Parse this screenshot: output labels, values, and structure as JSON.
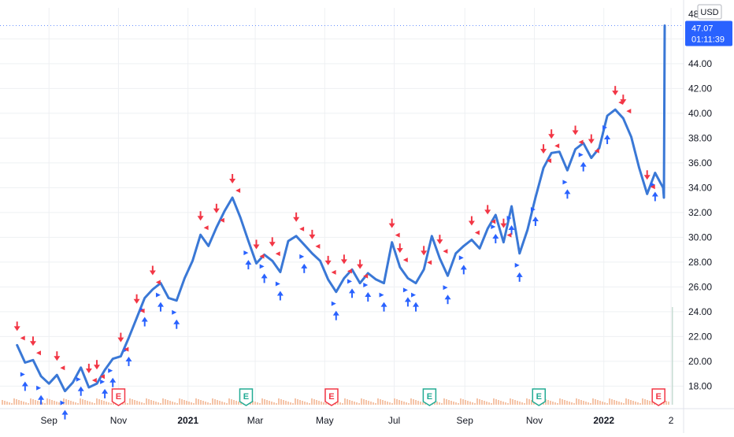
{
  "chart_data": {
    "type": "line",
    "currency": "USD",
    "last_price_label": "47.07",
    "countdown_label": "01:11:39",
    "ylim": [
      16.5,
      48.5
    ],
    "yticks": [
      18,
      20,
      22,
      24,
      26,
      28,
      30,
      32,
      34,
      36,
      38,
      40,
      42,
      44,
      46
    ],
    "ytick_labels": [
      "18.00",
      "20.00",
      "22.00",
      "24.00",
      "26.00",
      "28.00",
      "30.00",
      "32.00",
      "34.00",
      "36.00",
      "38.00",
      "40.00",
      "42.00",
      "44.00",
      "46.00"
    ],
    "y_top_partial_label": "48",
    "x_ticks": [
      {
        "date": "2020-09-01",
        "label": "Sep",
        "bold": false
      },
      {
        "date": "2020-11-01",
        "label": "Nov",
        "bold": false
      },
      {
        "date": "2021-01-01",
        "label": "2021",
        "bold": true
      },
      {
        "date": "2021-03-01",
        "label": "Mar",
        "bold": false
      },
      {
        "date": "2021-05-01",
        "label": "May",
        "bold": false
      },
      {
        "date": "2021-07-01",
        "label": "Jul",
        "bold": false
      },
      {
        "date": "2021-09-01",
        "label": "Sep",
        "bold": false
      },
      {
        "date": "2021-11-01",
        "label": "Nov",
        "bold": false
      },
      {
        "date": "2022-01-01",
        "label": "2022",
        "bold": true
      },
      {
        "date": "2022-03-01",
        "label": "2",
        "bold": false
      }
    ],
    "grid": true,
    "colors": {
      "line": "#3a78d6",
      "buy": "#2962ff",
      "sell": "#f23645",
      "earnings_red": "#f23645",
      "earnings_green": "#22ab94",
      "grid": "#eef0f3",
      "volume": "#f5c4a8",
      "badge": "#2962ff"
    },
    "series": [
      {
        "x": [
          "2020-08-04",
          "2020-08-11",
          "2020-08-18",
          "2020-08-25",
          "2020-09-01",
          "2020-09-08",
          "2020-09-15",
          "2020-09-22",
          "2020-09-29",
          "2020-10-06",
          "2020-10-13",
          "2020-10-20",
          "2020-10-27",
          "2020-11-03",
          "2020-11-10",
          "2020-11-17",
          "2020-11-24",
          "2020-12-01",
          "2020-12-08",
          "2020-12-15",
          "2020-12-22",
          "2020-12-29",
          "2021-01-05",
          "2021-01-12",
          "2021-01-19",
          "2021-01-26",
          "2021-02-02",
          "2021-02-09",
          "2021-02-16",
          "2021-02-23",
          "2021-03-02",
          "2021-03-09",
          "2021-03-16",
          "2021-03-23",
          "2021-03-30",
          "2021-04-06",
          "2021-04-13",
          "2021-04-20",
          "2021-04-27",
          "2021-05-04",
          "2021-05-11",
          "2021-05-18",
          "2021-05-25",
          "2021-06-01",
          "2021-06-08",
          "2021-06-15",
          "2021-06-22",
          "2021-06-29",
          "2021-07-06",
          "2021-07-13",
          "2021-07-20",
          "2021-07-27",
          "2021-08-03",
          "2021-08-10",
          "2021-08-17",
          "2021-08-24",
          "2021-08-31",
          "2021-09-07",
          "2021-09-14",
          "2021-09-21",
          "2021-09-28",
          "2021-10-05",
          "2021-10-12",
          "2021-10-19",
          "2021-10-26",
          "2021-11-02",
          "2021-11-09",
          "2021-11-16",
          "2021-11-23",
          "2021-11-30",
          "2021-12-07",
          "2021-12-14",
          "2021-12-21",
          "2021-12-28",
          "2022-01-04",
          "2022-01-11",
          "2022-01-18",
          "2022-01-25",
          "2022-02-01",
          "2022-02-08",
          "2022-02-15",
          "2022-02-22"
        ],
        "y": [
          21.3,
          19.9,
          20.1,
          18.8,
          18.2,
          18.9,
          17.6,
          18.3,
          19.5,
          17.9,
          18.2,
          19.3,
          20.2,
          20.4,
          21.9,
          23.5,
          25.1,
          25.8,
          26.3,
          25.1,
          24.9,
          26.7,
          28.1,
          30.2,
          29.3,
          30.8,
          32.1,
          33.2,
          31.6,
          29.7,
          27.9,
          28.6,
          28.1,
          27.2,
          29.7,
          30.1,
          29.4,
          28.7,
          28.1,
          26.6,
          25.6,
          26.7,
          27.4,
          26.3,
          27.1,
          26.6,
          26.3,
          29.6,
          27.6,
          26.7,
          26.3,
          27.4,
          30.1,
          28.3,
          26.9,
          28.7,
          29.3,
          29.8,
          29.1,
          30.7,
          31.8,
          29.6,
          32.5,
          28.7,
          30.6,
          33.2,
          35.6,
          36.8,
          36.9,
          35.4,
          37.1,
          37.6,
          36.4,
          37.2,
          39.8,
          40.3,
          39.6,
          38.1,
          35.6,
          33.5,
          35.2,
          34.0
        ]
      }
    ],
    "final_spike": {
      "date": "2022-02-25",
      "value": 47.07
    },
    "buy_signals": [
      "2020-08-11",
      "2020-08-25",
      "2020-09-15",
      "2020-09-29",
      "2020-10-20",
      "2020-10-27",
      "2020-11-10",
      "2020-11-24",
      "2020-12-08",
      "2020-12-22",
      "2021-02-23",
      "2021-03-09",
      "2021-03-23",
      "2021-04-13",
      "2021-05-11",
      "2021-05-25",
      "2021-06-08",
      "2021-06-22",
      "2021-07-13",
      "2021-07-20",
      "2021-08-17",
      "2021-08-31",
      "2021-09-28",
      "2021-10-12",
      "2021-10-19",
      "2021-11-02",
      "2021-11-30",
      "2021-12-14",
      "2022-01-04",
      "2022-02-15"
    ],
    "sell_signals": [
      "2020-08-04",
      "2020-08-18",
      "2020-09-08",
      "2020-10-06",
      "2020-10-13",
      "2020-11-03",
      "2020-11-17",
      "2020-12-01",
      "2021-01-12",
      "2021-01-26",
      "2021-02-09",
      "2021-03-02",
      "2021-03-16",
      "2021-04-06",
      "2021-04-20",
      "2021-05-04",
      "2021-05-18",
      "2021-06-01",
      "2021-06-29",
      "2021-07-06",
      "2021-07-27",
      "2021-08-10",
      "2021-09-07",
      "2021-09-21",
      "2021-10-05",
      "2021-11-09",
      "2021-11-16",
      "2021-12-07",
      "2021-12-21",
      "2022-01-11",
      "2022-01-18",
      "2022-02-08"
    ],
    "earnings": [
      {
        "date": "2020-11-01",
        "label": "E",
        "color": "red"
      },
      {
        "date": "2021-02-21",
        "label": "E",
        "color": "green"
      },
      {
        "date": "2021-05-07",
        "label": "E",
        "color": "red"
      },
      {
        "date": "2021-08-01",
        "label": "E",
        "color": "green"
      },
      {
        "date": "2021-11-05",
        "label": "E",
        "color": "green"
      },
      {
        "date": "2022-02-18",
        "label": "E",
        "color": "red"
      }
    ]
  }
}
